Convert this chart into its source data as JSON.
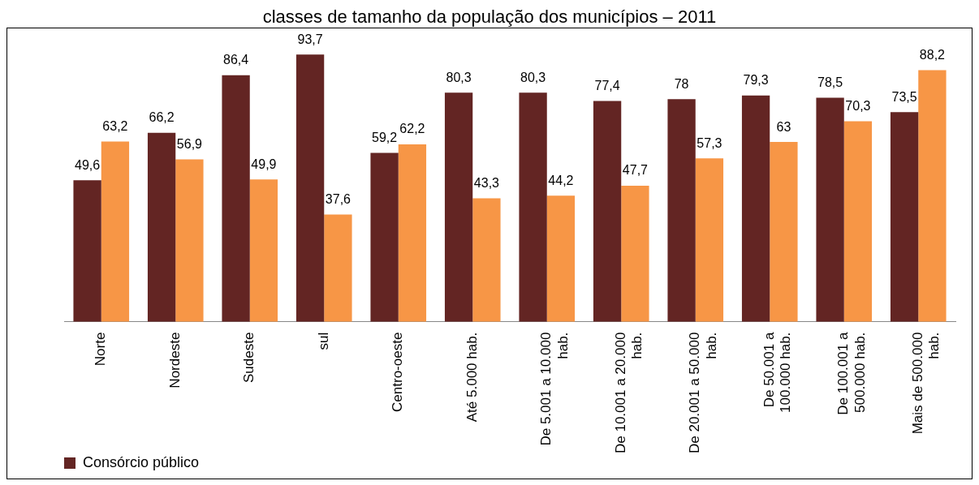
{
  "chart_data": {
    "type": "bar",
    "title": "classes de tamanho da população dos municípios – 2011",
    "categories": [
      "Norte",
      "Nordeste",
      "Sudeste",
      "sul",
      "Centro-oeste",
      "Até 5.000 hab.",
      "De 5.001 a 10.000 hab.",
      "De 10.001 a 20.000 hab.",
      "De 20.001 a 50.000 hab.",
      "De 50.001 a 100.000 hab.",
      "De 100.001 a 500.000 hab.",
      "Mais de 500.000 hab."
    ],
    "series": [
      {
        "name": "Consórcio público",
        "color": "#632523",
        "values": [
          49.6,
          66.2,
          86.4,
          93.7,
          59.2,
          80.3,
          80.3,
          77.4,
          78,
          79.3,
          78.5,
          73.5
        ],
        "value_labels": [
          "49,6",
          "66,2",
          "86,4",
          "93,7",
          "59,2",
          "80,3",
          "80,3",
          "77,4",
          "78",
          "79,3",
          "78,5",
          "73,5"
        ]
      },
      {
        "color": "#f79646",
        "values": [
          63.2,
          56.9,
          49.9,
          37.6,
          62.2,
          43.3,
          44.2,
          47.7,
          57.3,
          63,
          70.3,
          88.2
        ],
        "value_labels": [
          "63,2",
          "56,9",
          "49,9",
          "37,6",
          "62,2",
          "43,3",
          "44,2",
          "47,7",
          "57,3",
          "63",
          "70,3",
          "88,2"
        ]
      }
    ],
    "legend": "bottom left",
    "grid": false
  }
}
